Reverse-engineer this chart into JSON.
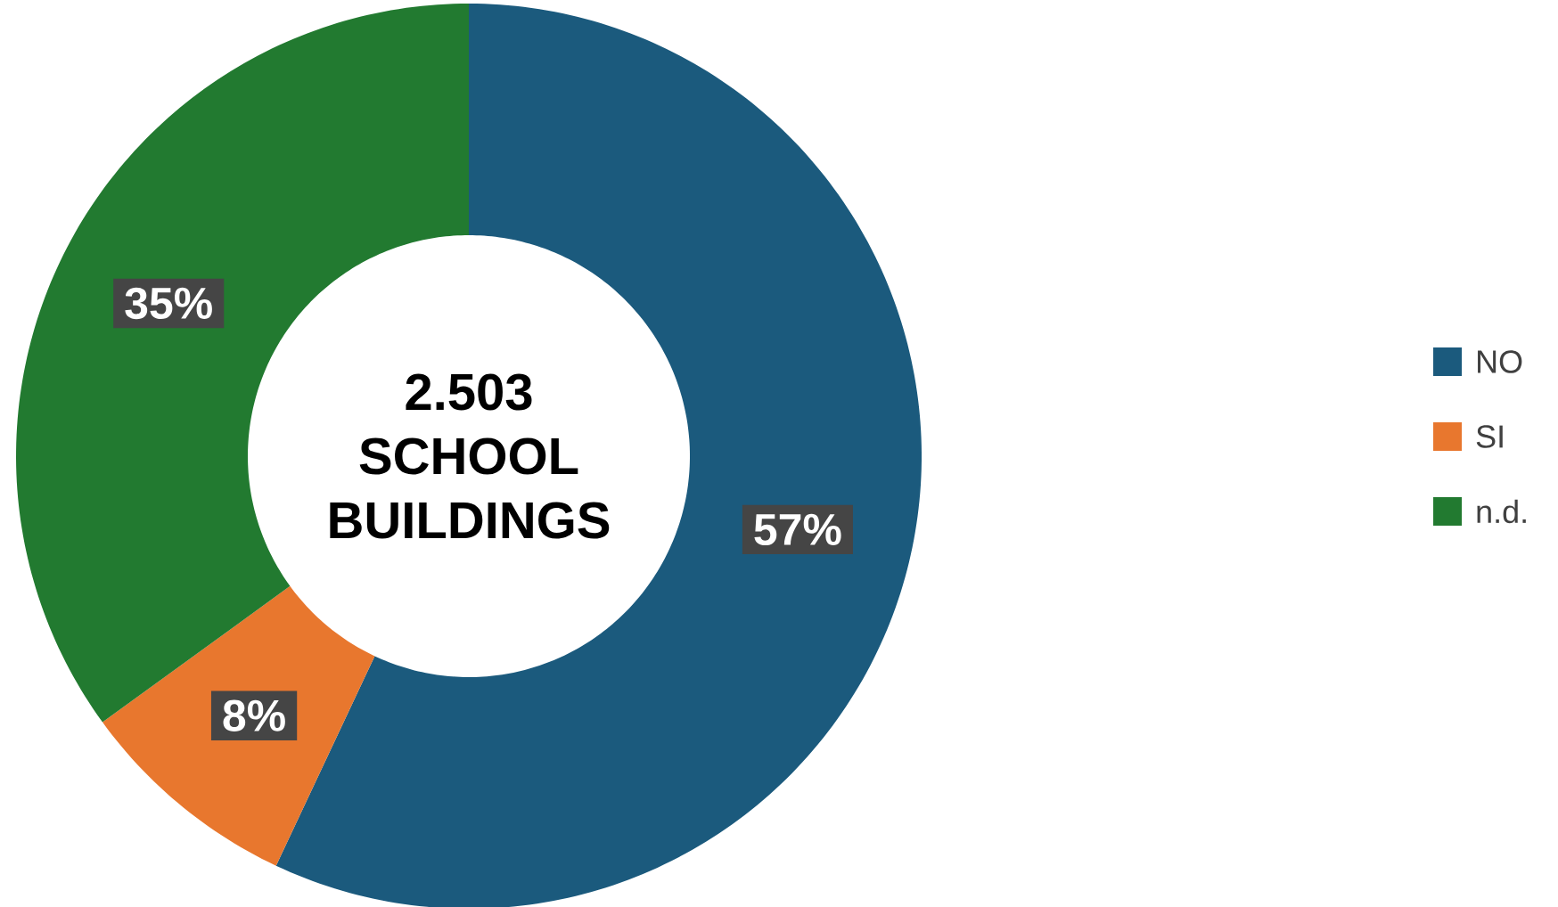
{
  "chart_data": {
    "type": "donut",
    "title": "2.503 SCHOOL BUILDINGS",
    "categories": [
      "NO",
      "SI",
      "n.d."
    ],
    "values": [
      57,
      8,
      35
    ],
    "value_labels": [
      "57%",
      "8%",
      "35%"
    ],
    "colors": [
      "#1b5a7d",
      "#e8772e",
      "#227a30"
    ],
    "legend": "right"
  }
}
